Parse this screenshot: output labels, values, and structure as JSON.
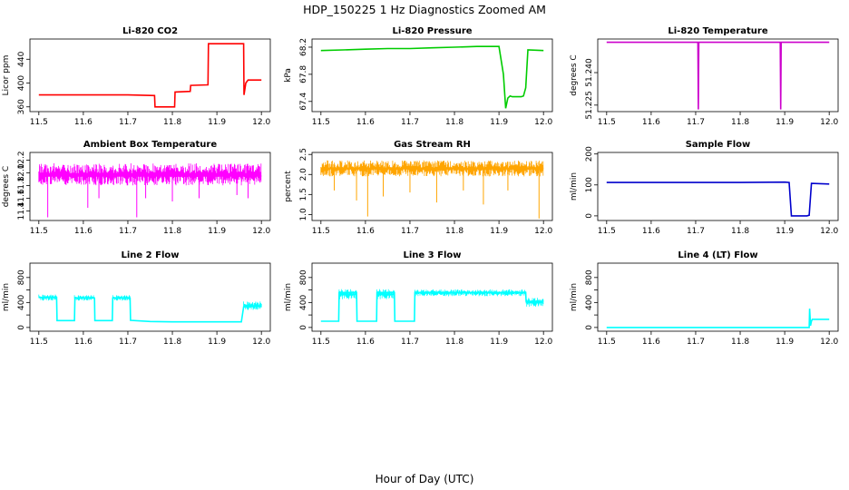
{
  "figure": {
    "title": "HDP_150225  1 Hz Diagnostics Zoomed AM",
    "xlabel": "Hour of Day (UTC)"
  },
  "chart_data": [
    {
      "type": "line",
      "title": "Li-820 CO2",
      "ylabel": "Licor ppm",
      "color": "#ff0000",
      "xlim": [
        11.5,
        12.0
      ],
      "ylim": [
        352,
        474
      ],
      "x_ticks": [
        "11.5",
        "11.6",
        "11.7",
        "11.8",
        "11.9",
        "12.0"
      ],
      "y_ticks": [
        360,
        400,
        440
      ],
      "y_tick_labels": [
        "360",
        "400",
        "440"
      ],
      "series": [
        {
          "x": [
            11.5,
            11.6,
            11.7,
            11.76,
            11.761,
            11.805,
            11.806,
            11.84,
            11.841,
            11.88,
            11.881,
            11.96,
            11.961,
            11.965,
            11.97,
            12.0
          ],
          "y": [
            380,
            380,
            380,
            379,
            360,
            360,
            385,
            386,
            396,
            397,
            466,
            466,
            380,
            400,
            405,
            405
          ]
        }
      ]
    },
    {
      "type": "line",
      "title": "Li-820 Pressure",
      "ylabel": "kPa",
      "color": "#00cc00",
      "xlim": [
        11.5,
        12.0
      ],
      "ylim": [
        67.25,
        68.32
      ],
      "x_ticks": [
        "11.5",
        "11.6",
        "11.7",
        "11.8",
        "11.9",
        "12.0"
      ],
      "y_ticks": [
        67.4,
        67.8,
        68.2
      ],
      "y_tick_labels": [
        "67.4",
        "67.8",
        "68.2"
      ],
      "series": [
        {
          "x": [
            11.5,
            11.55,
            11.6,
            11.65,
            11.7,
            11.75,
            11.8,
            11.85,
            11.9,
            11.91,
            11.915,
            11.92,
            11.925,
            11.93,
            11.95,
            11.955,
            11.96,
            11.965,
            12.0
          ],
          "y": [
            68.15,
            68.16,
            68.17,
            68.18,
            68.18,
            68.19,
            68.2,
            68.21,
            68.21,
            67.8,
            67.3,
            67.45,
            67.48,
            67.47,
            67.47,
            67.48,
            67.6,
            68.16,
            68.15
          ]
        }
      ]
    },
    {
      "type": "line",
      "title": "Li-820 Temperature",
      "ylabel": "degrees C",
      "color": "#cc00cc",
      "xlim": [
        11.5,
        12.0
      ],
      "ylim": [
        51.222,
        51.2555
      ],
      "x_ticks": [
        "11.5",
        "11.6",
        "11.7",
        "11.8",
        "11.9",
        "12.0"
      ],
      "y_ticks": [
        51.225,
        51.24
      ],
      "y_tick_labels": [
        "51.225",
        "51.240"
      ],
      "series": [
        {
          "x": [
            11.5,
            11.705,
            11.706,
            11.707,
            11.89,
            11.891,
            11.892,
            12.0
          ],
          "y": [
            51.254,
            51.254,
            51.223,
            51.254,
            51.254,
            51.223,
            51.254,
            51.254
          ]
        }
      ]
    },
    {
      "type": "line",
      "title": "Ambient Box Temperature",
      "ylabel": "degrees C",
      "color": "#ff00ff",
      "xlim": [
        11.5,
        12.0
      ],
      "ylim": [
        11.25,
        12.32
      ],
      "x_ticks": [
        "11.5",
        "11.6",
        "11.7",
        "11.8",
        "11.9",
        "12.0"
      ],
      "y_ticks": [
        11.4,
        11.6,
        11.8,
        12.0,
        12.2
      ],
      "y_tick_labels": [
        "11.4",
        "11.6",
        "11.8",
        "12.0",
        "12.2"
      ],
      "band": {
        "x": [
          11.5,
          12.0
        ],
        "low": 11.8,
        "high": 12.15
      },
      "spikes": {
        "x": [
          11.52,
          11.61,
          11.635,
          11.72,
          11.74,
          11.8,
          11.86,
          11.945,
          11.97
        ],
        "y": [
          11.3,
          11.45,
          11.6,
          11.3,
          11.6,
          11.55,
          11.6,
          11.65,
          11.6
        ]
      },
      "series": [
        {
          "x": [
            11.5,
            12.0
          ],
          "y": [
            11.95,
            11.95
          ]
        }
      ]
    },
    {
      "type": "line",
      "title": "Gas Stream RH",
      "ylabel": "percent",
      "color": "#ffa500",
      "xlim": [
        11.5,
        12.0
      ],
      "ylim": [
        0.85,
        2.55
      ],
      "x_ticks": [
        "11.5",
        "11.6",
        "11.7",
        "11.8",
        "11.9",
        "12.0"
      ],
      "y_ticks": [
        1.0,
        1.5,
        2.0,
        2.5
      ],
      "y_tick_labels": [
        "1.0",
        "1.5",
        "2.0",
        "2.5"
      ],
      "band": {
        "x": [
          11.5,
          12.0
        ],
        "low": 1.95,
        "high": 2.35
      },
      "spikes": {
        "x": [
          11.53,
          11.58,
          11.605,
          11.64,
          11.7,
          11.76,
          11.82,
          11.865,
          11.92,
          11.99
        ],
        "y": [
          1.6,
          1.35,
          0.95,
          1.45,
          1.55,
          1.3,
          1.6,
          1.25,
          1.6,
          0.9
        ]
      },
      "series": [
        {
          "x": [
            11.5,
            12.0
          ],
          "y": [
            2.15,
            2.15
          ]
        }
      ]
    },
    {
      "type": "line",
      "title": "Sample Flow",
      "ylabel": "ml/min",
      "color": "#0000cc",
      "xlim": [
        11.5,
        12.0
      ],
      "ylim": [
        -15,
        205
      ],
      "x_ticks": [
        "11.5",
        "11.6",
        "11.7",
        "11.8",
        "11.9",
        "12.0"
      ],
      "y_ticks": [
        0,
        100,
        200
      ],
      "y_tick_labels": [
        "0",
        "100",
        "200"
      ],
      "series": [
        {
          "x": [
            11.5,
            11.6,
            11.7,
            11.8,
            11.9,
            11.91,
            11.915,
            11.95,
            11.955,
            11.96,
            12.0
          ],
          "y": [
            108,
            108,
            108,
            108,
            109,
            108,
            0,
            0,
            2,
            105,
            103
          ]
        }
      ]
    },
    {
      "type": "line",
      "title": "Line 2 Flow",
      "ylabel": "ml/min",
      "color": "#00ffff",
      "xlim": [
        11.5,
        12.0
      ],
      "ylim": [
        -60,
        1030
      ],
      "x_ticks": [
        "11.5",
        "11.6",
        "11.7",
        "11.8",
        "11.9",
        "12.0"
      ],
      "y_ticks": [
        0,
        200,
        400,
        600,
        800
      ],
      "y_tick_labels": [
        "0",
        "400",
        "800"
      ],
      "series": [
        {
          "x": [
            11.5,
            11.54,
            11.541,
            11.58,
            11.581,
            11.625,
            11.626,
            11.665,
            11.666,
            11.705,
            11.706,
            11.75,
            11.8,
            11.9,
            11.955,
            11.96,
            12.0
          ],
          "y": [
            480,
            480,
            110,
            110,
            470,
            470,
            110,
            110,
            470,
            470,
            115,
            95,
            90,
            90,
            90,
            330,
            340
          ]
        }
      ],
      "bands": [
        {
          "x": [
            11.5,
            11.54
          ],
          "low": 430,
          "high": 530
        },
        {
          "x": [
            11.58,
            11.625
          ],
          "low": 430,
          "high": 520
        },
        {
          "x": [
            11.666,
            11.705
          ],
          "low": 430,
          "high": 520
        },
        {
          "x": [
            11.96,
            12.0
          ],
          "low": 280,
          "high": 420
        }
      ]
    },
    {
      "type": "line",
      "title": "Line 3 Flow",
      "ylabel": "ml/min",
      "color": "#00ffff",
      "xlim": [
        11.5,
        12.0
      ],
      "ylim": [
        -60,
        1030
      ],
      "x_ticks": [
        "11.5",
        "11.6",
        "11.7",
        "11.8",
        "11.9",
        "12.0"
      ],
      "y_ticks": [
        0,
        200,
        400,
        600,
        800
      ],
      "y_tick_labels": [
        "0",
        "400",
        "800"
      ],
      "series": [
        {
          "x": [
            11.5,
            11.54,
            11.541,
            11.58,
            11.581,
            11.625,
            11.626,
            11.665,
            11.666,
            11.71,
            11.711,
            11.96,
            11.961,
            12.0
          ],
          "y": [
            100,
            100,
            560,
            560,
            100,
            100,
            560,
            560,
            100,
            100,
            560,
            560,
            420,
            420
          ]
        }
      ],
      "bands": [
        {
          "x": [
            11.541,
            11.58
          ],
          "low": 450,
          "high": 620
        },
        {
          "x": [
            11.626,
            11.665
          ],
          "low": 450,
          "high": 620
        },
        {
          "x": [
            11.711,
            11.96
          ],
          "low": 500,
          "high": 610
        },
        {
          "x": [
            11.961,
            12.0
          ],
          "low": 330,
          "high": 480
        }
      ]
    },
    {
      "type": "line",
      "title": "Line 4 (LT) Flow",
      "ylabel": "ml/min",
      "color": "#00ffff",
      "xlim": [
        11.5,
        12.0
      ],
      "ylim": [
        -60,
        1030
      ],
      "x_ticks": [
        "11.5",
        "11.6",
        "11.7",
        "11.8",
        "11.9",
        "12.0"
      ],
      "y_ticks": [
        0,
        200,
        400,
        600,
        800
      ],
      "y_tick_labels": [
        "0",
        "400",
        "800"
      ],
      "series": [
        {
          "x": [
            11.5,
            11.6,
            11.7,
            11.8,
            11.9,
            11.955,
            11.956,
            11.958,
            11.96,
            11.962,
            12.0
          ],
          "y": [
            0,
            0,
            0,
            0,
            0,
            0,
            300,
            30,
            100,
            130,
            130
          ]
        }
      ]
    }
  ]
}
